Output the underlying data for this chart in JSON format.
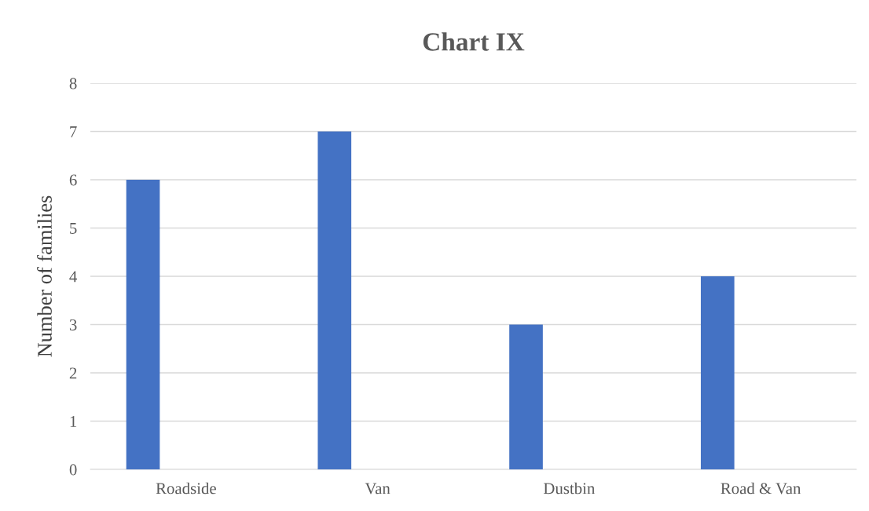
{
  "chart_data": {
    "type": "bar",
    "title": "Chart IX",
    "ylabel": "Number of families",
    "categories": [
      "Roadside",
      "Van",
      "Dustbin",
      "Road & Van"
    ],
    "values": [
      6,
      7,
      3,
      4
    ],
    "color": "#4472c4",
    "ylim": [
      0,
      8
    ],
    "yticks": [
      0,
      1,
      2,
      3,
      4,
      5,
      6,
      7,
      8
    ],
    "grid": "y",
    "legend": false
  }
}
